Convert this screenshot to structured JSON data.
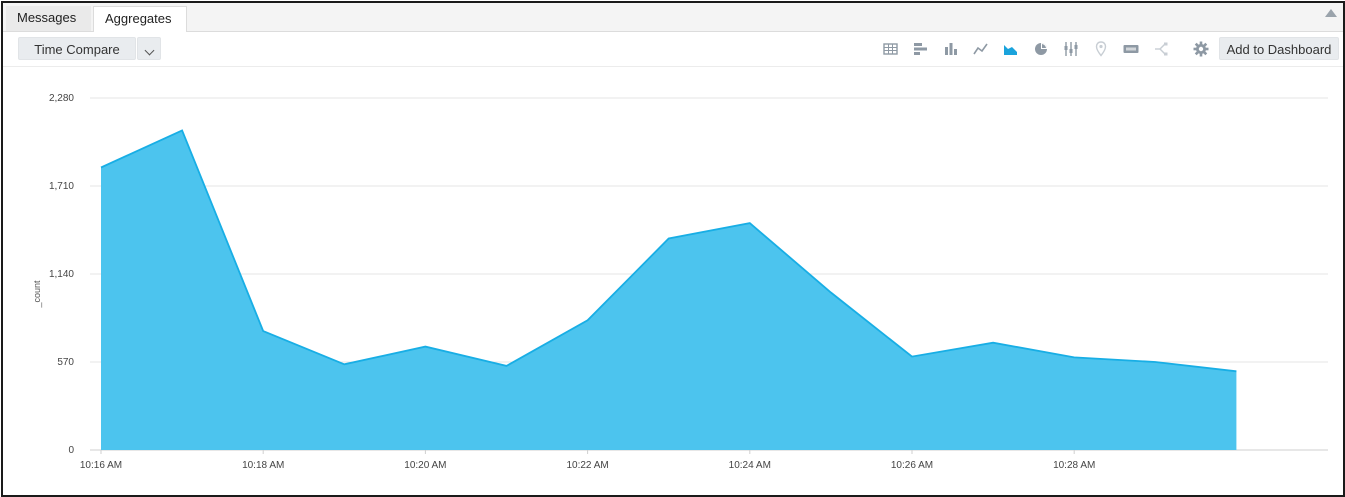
{
  "tabs": [
    {
      "label": "Messages",
      "active": false
    },
    {
      "label": "Aggregates",
      "active": true
    }
  ],
  "toolbar": {
    "time_compare_label": "Time Compare",
    "add_to_dashboard_label": "Add to Dashboard",
    "view_icons": [
      "table-icon",
      "bar-horizontal-icon",
      "column-icon",
      "line-icon",
      "area-icon",
      "pie-icon",
      "box-plot-icon",
      "map-pin-icon",
      "single-value-icon",
      "sankey-icon"
    ],
    "active_view": "area-icon"
  },
  "colors": {
    "area_fill": "#4cc4ee",
    "area_stroke": "#18aee5",
    "active_icon": "#1aa3dc",
    "inactive_icon": "#8e99a4"
  },
  "chart_data": {
    "type": "area",
    "ylabel": "_count",
    "xlabel": "",
    "yticks": [
      "2,280",
      "1,710",
      "1,140",
      "570",
      "0"
    ],
    "ylim": [
      0,
      2280
    ],
    "xtick_labels": [
      "10:16 AM",
      "10:18 AM",
      "10:20 AM",
      "10:22 AM",
      "10:24 AM",
      "10:26 AM",
      "10:28 AM"
    ],
    "x": [
      "10:16 AM",
      "10:17 AM",
      "10:18 AM",
      "10:19 AM",
      "10:20 AM",
      "10:21 AM",
      "10:22 AM",
      "10:23 AM",
      "10:24 AM",
      "10:25 AM",
      "10:26 AM",
      "10:27 AM",
      "10:28 AM",
      "10:29 AM",
      "10:30 AM"
    ],
    "series": [
      {
        "values": [
          1830,
          2070,
          770,
          555,
          670,
          545,
          840,
          1370,
          1470,
          1020,
          605,
          695,
          600,
          570,
          510
        ]
      }
    ],
    "grid": true,
    "legend": "none"
  }
}
